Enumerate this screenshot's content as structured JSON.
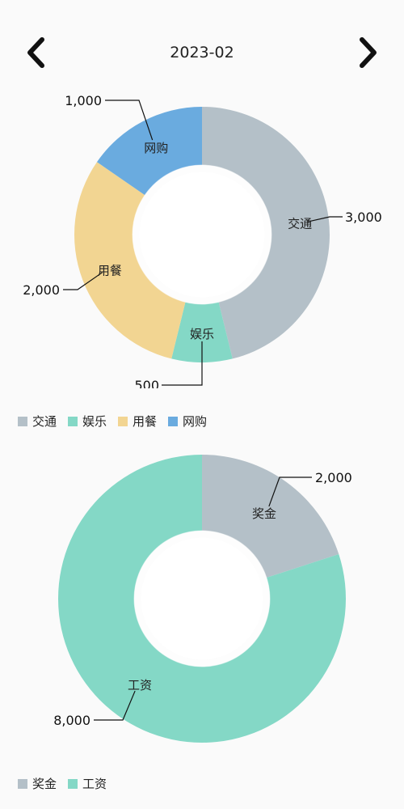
{
  "header": {
    "month": "2023-02",
    "prev_icon": "chevron-left-icon",
    "next_icon": "chevron-right-icon"
  },
  "chart_data": [
    {
      "type": "pie",
      "donut": true,
      "categories": [
        "交通",
        "娱乐",
        "用餐",
        "网购"
      ],
      "values": [
        3000,
        500,
        2000,
        1000
      ],
      "value_labels": [
        "3,000",
        "500",
        "2,000",
        "1,000"
      ],
      "colors": [
        "#b4c0c8",
        "#84d8c6",
        "#f2d592",
        "#6aabdf"
      ],
      "legend": [
        "交通",
        "娱乐",
        "用餐",
        "网购"
      ],
      "legend_position": "bottom-left"
    },
    {
      "type": "pie",
      "donut": true,
      "categories": [
        "奖金",
        "工资"
      ],
      "values": [
        2000,
        8000
      ],
      "value_labels": [
        "2,000",
        "8,000"
      ],
      "colors": [
        "#b4c0c8",
        "#84d8c6"
      ],
      "legend": [
        "奖金",
        "工资"
      ],
      "legend_position": "bottom-left"
    }
  ]
}
